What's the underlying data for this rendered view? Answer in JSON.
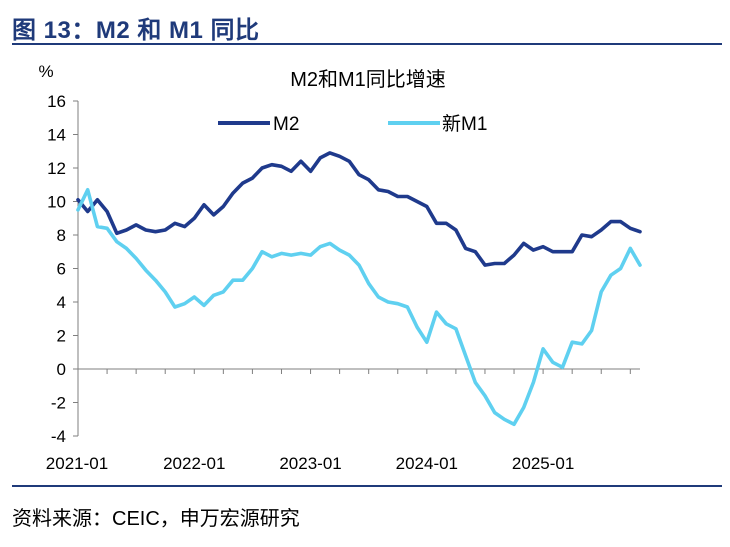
{
  "figure": {
    "title": "图 13：M2 和 M1 同比",
    "source": "资料来源：CEIC，申万宏源研究"
  },
  "colors": {
    "title": "#1f3a7a",
    "m2": "#1f3a8c",
    "m1": "#5fd0f0",
    "axis": "#7f7f7f"
  },
  "chart_data": {
    "type": "line",
    "title": "M2和M1同比增速",
    "ylabel": "%",
    "xlabel": "",
    "ylim": [
      -4,
      16
    ],
    "yticks": [
      -4,
      -2,
      0,
      2,
      4,
      6,
      8,
      10,
      12,
      14,
      16
    ],
    "xtick_labels": [
      "2021-01",
      "2022-01",
      "2023-01",
      "2024-01",
      "2025-01"
    ],
    "xtick_index": [
      0,
      12,
      24,
      36,
      48
    ],
    "legend": "top",
    "grid": false,
    "series": [
      {
        "name": "M2",
        "values": [
          10.1,
          9.4,
          10.1,
          9.4,
          8.1,
          8.3,
          8.6,
          8.3,
          8.2,
          8.3,
          8.7,
          8.5,
          9.0,
          9.8,
          9.2,
          9.7,
          10.5,
          11.1,
          11.4,
          12.0,
          12.2,
          12.1,
          11.8,
          12.4,
          11.8,
          12.6,
          12.9,
          12.7,
          12.4,
          11.6,
          11.3,
          10.7,
          10.6,
          10.3,
          10.3,
          10.0,
          9.7,
          8.7,
          8.7,
          8.3,
          7.2,
          7.0,
          6.2,
          6.3,
          6.3,
          6.8,
          7.5,
          7.1,
          7.3,
          7.0,
          7.0,
          7.0,
          8.0,
          7.9,
          8.3,
          8.8,
          8.8,
          8.4,
          8.2
        ],
        "color": "#1f3a8c"
      },
      {
        "name": "新M1",
        "values": [
          9.5,
          10.7,
          8.5,
          8.4,
          7.6,
          7.2,
          6.6,
          5.9,
          5.3,
          4.6,
          3.7,
          3.9,
          4.3,
          3.8,
          4.4,
          4.6,
          5.3,
          5.3,
          6.0,
          7.0,
          6.7,
          6.9,
          6.8,
          6.9,
          6.8,
          7.3,
          7.5,
          7.1,
          6.8,
          6.2,
          5.1,
          4.3,
          4.0,
          3.9,
          3.7,
          2.5,
          1.6,
          3.4,
          2.7,
          2.4,
          0.8,
          -0.8,
          -1.6,
          -2.6,
          -3.0,
          -3.3,
          -2.3,
          -0.8,
          1.2,
          0.4,
          0.1,
          1.6,
          1.5,
          2.3,
          4.6,
          5.6,
          6.0,
          7.2,
          6.2
        ],
        "color": "#5fd0f0"
      }
    ]
  }
}
